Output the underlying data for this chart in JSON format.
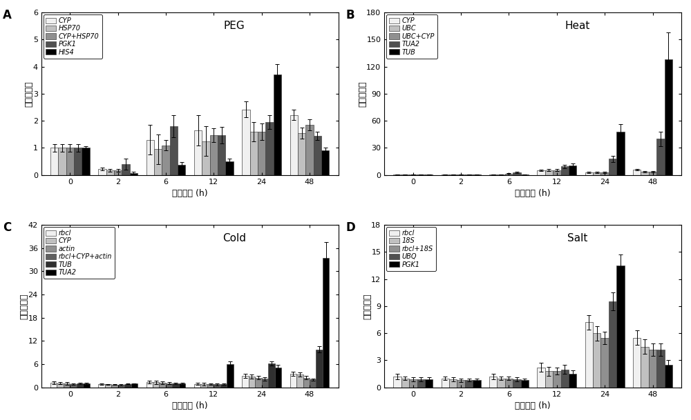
{
  "panel_A": {
    "title": "PEG",
    "label": "A",
    "xlabel": "处理时间 (h)",
    "ylabel": "相对表达量",
    "ylim": [
      0,
      6
    ],
    "yticks": [
      0,
      1,
      2,
      3,
      4,
      5,
      6
    ],
    "time_points": [
      0,
      2,
      6,
      12,
      24,
      48
    ],
    "series": [
      {
        "name": "CYP",
        "color": "#f0f0f0",
        "values": [
          1.0,
          0.22,
          1.3,
          1.65,
          2.42,
          2.22
        ],
        "errors": [
          0.13,
          0.05,
          0.55,
          0.55,
          0.3,
          0.2
        ]
      },
      {
        "name": "HSP70",
        "color": "#c0c0c0",
        "values": [
          1.0,
          0.18,
          0.95,
          1.25,
          1.6,
          1.55
        ],
        "errors": [
          0.13,
          0.05,
          0.55,
          0.55,
          0.35,
          0.2
        ]
      },
      {
        "name": "CYP+HSP70",
        "color": "#909090",
        "values": [
          1.0,
          0.18,
          1.1,
          1.47,
          1.6,
          1.85
        ],
        "errors": [
          0.13,
          0.05,
          0.2,
          0.25,
          0.3,
          0.2
        ]
      },
      {
        "name": "PGK1",
        "color": "#505050",
        "values": [
          1.0,
          0.4,
          1.8,
          1.47,
          1.95,
          1.45
        ],
        "errors": [
          0.13,
          0.2,
          0.4,
          0.3,
          0.25,
          0.15
        ]
      },
      {
        "name": "HIS4",
        "color": "#000000",
        "values": [
          1.0,
          0.08,
          0.38,
          0.5,
          3.7,
          0.92
        ],
        "errors": [
          0.05,
          0.03,
          0.1,
          0.1,
          0.4,
          0.08
        ]
      }
    ]
  },
  "panel_B": {
    "title": "Heat",
    "label": "B",
    "xlabel": "处理时间 (h)",
    "ylabel": "相对表达量",
    "ylim": [
      0,
      180
    ],
    "yticks": [
      0,
      30,
      60,
      90,
      120,
      150,
      180
    ],
    "time_points": [
      0,
      2,
      6,
      12,
      24,
      48
    ],
    "series": [
      {
        "name": "CYP",
        "color": "#f0f0f0",
        "values": [
          0.5,
          0.5,
          0.5,
          5.0,
          3.0,
          6.0
        ],
        "errors": [
          0.2,
          0.2,
          0.3,
          1.0,
          0.8,
          1.0
        ]
      },
      {
        "name": "UBC",
        "color": "#c0c0c0",
        "values": [
          0.5,
          0.5,
          0.5,
          5.5,
          3.0,
          3.5
        ],
        "errors": [
          0.2,
          0.2,
          0.3,
          1.5,
          0.8,
          1.0
        ]
      },
      {
        "name": "UBC+CYP",
        "color": "#909090",
        "values": [
          0.5,
          0.5,
          1.5,
          5.5,
          3.0,
          3.5
        ],
        "errors": [
          0.2,
          0.2,
          0.5,
          1.5,
          0.8,
          1.0
        ]
      },
      {
        "name": "TUA2",
        "color": "#505050",
        "values": [
          0.5,
          0.5,
          2.5,
          9.5,
          18.0,
          40.0
        ],
        "errors": [
          0.2,
          0.2,
          0.8,
          2.0,
          3.5,
          8.0
        ]
      },
      {
        "name": "TUB",
        "color": "#000000",
        "values": [
          0.5,
          0.5,
          0.5,
          10.5,
          48.0,
          128.0
        ],
        "errors": [
          0.2,
          0.2,
          0.2,
          2.5,
          8.0,
          30.0
        ]
      }
    ]
  },
  "panel_C": {
    "title": "Cold",
    "label": "C",
    "xlabel": "处理时间 (h)",
    "ylabel": "相对表达量",
    "ylim": [
      0,
      42
    ],
    "yticks": [
      0,
      6,
      12,
      18,
      24,
      30,
      36,
      42
    ],
    "time_points": [
      0,
      2,
      6,
      12,
      24,
      48
    ],
    "series": [
      {
        "name": "rbcl",
        "color": "#f0f0f0",
        "values": [
          1.2,
          0.8,
          1.4,
          0.9,
          3.0,
          3.5
        ],
        "errors": [
          0.3,
          0.15,
          0.4,
          0.3,
          0.5,
          0.5
        ]
      },
      {
        "name": "CYP",
        "color": "#c0c0c0",
        "values": [
          1.1,
          0.75,
          1.3,
          0.85,
          2.8,
          3.3
        ],
        "errors": [
          0.3,
          0.15,
          0.4,
          0.3,
          0.5,
          0.5
        ]
      },
      {
        "name": "actin",
        "color": "#909090",
        "values": [
          1.0,
          0.7,
          1.2,
          0.8,
          2.5,
          2.5
        ],
        "errors": [
          0.3,
          0.1,
          0.3,
          0.2,
          0.4,
          0.4
        ]
      },
      {
        "name": "rbcl+CYP+actin",
        "color": "#606060",
        "values": [
          0.9,
          0.65,
          1.1,
          0.75,
          2.2,
          2.0
        ],
        "errors": [
          0.2,
          0.1,
          0.25,
          0.2,
          0.4,
          0.3
        ]
      },
      {
        "name": "TUB",
        "color": "#303030",
        "values": [
          1.0,
          0.85,
          1.0,
          0.9,
          6.2,
          9.8
        ],
        "errors": [
          0.2,
          0.1,
          0.2,
          0.2,
          0.6,
          0.8
        ]
      },
      {
        "name": "TUA2",
        "color": "#000000",
        "values": [
          1.0,
          0.95,
          1.0,
          6.0,
          5.2,
          33.5
        ],
        "errors": [
          0.2,
          0.15,
          0.2,
          0.8,
          0.6,
          4.0
        ]
      }
    ]
  },
  "panel_D": {
    "title": "Salt",
    "label": "D",
    "xlabel": "处理时间 (h)",
    "ylabel": "相对表达量",
    "ylim": [
      0,
      18
    ],
    "yticks": [
      0,
      3,
      6,
      9,
      12,
      15,
      18
    ],
    "time_points": [
      0,
      2,
      6,
      12,
      24,
      48
    ],
    "series": [
      {
        "name": "rbcl",
        "color": "#f0f0f0",
        "values": [
          1.2,
          1.0,
          1.2,
          2.2,
          7.2,
          5.5
        ],
        "errors": [
          0.3,
          0.2,
          0.3,
          0.5,
          0.8,
          0.8
        ]
      },
      {
        "name": "18S",
        "color": "#c0c0c0",
        "values": [
          1.0,
          0.9,
          1.0,
          1.8,
          6.0,
          4.5
        ],
        "errors": [
          0.2,
          0.2,
          0.2,
          0.5,
          0.8,
          0.8
        ]
      },
      {
        "name": "rbcl+18S",
        "color": "#909090",
        "values": [
          0.9,
          0.8,
          1.0,
          1.8,
          5.5,
          4.2
        ],
        "errors": [
          0.2,
          0.2,
          0.2,
          0.4,
          0.7,
          0.7
        ]
      },
      {
        "name": "UBQ",
        "color": "#505050",
        "values": [
          0.9,
          0.8,
          0.9,
          2.0,
          9.5,
          4.2
        ],
        "errors": [
          0.2,
          0.15,
          0.2,
          0.5,
          1.0,
          0.7
        ]
      },
      {
        "name": "PGK1",
        "color": "#000000",
        "values": [
          0.9,
          0.8,
          0.8,
          1.5,
          13.5,
          2.5
        ],
        "errors": [
          0.2,
          0.15,
          0.15,
          0.4,
          1.2,
          0.5
        ]
      }
    ]
  },
  "figure_bg": "#ffffff",
  "capsize": 2
}
